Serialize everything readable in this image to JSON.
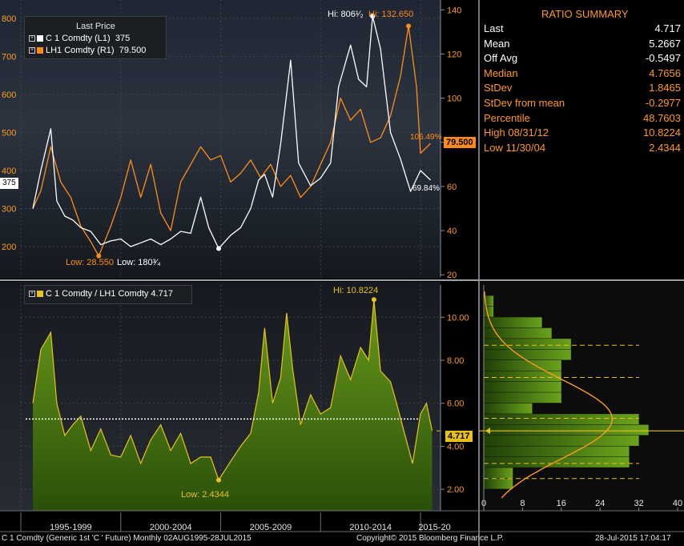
{
  "summary": {
    "title": "RATIO SUMMARY",
    "rows": [
      {
        "label": "Last",
        "value": "4.717",
        "color": "#ffffff"
      },
      {
        "label": "Mean",
        "value": "5.2667",
        "color": "#ffffff"
      },
      {
        "label": "Off Avg",
        "value": "-0.5497",
        "color": "#ffffff"
      },
      {
        "label": "Median",
        "value": "4.7656",
        "color": "#ff9a1f"
      },
      {
        "label": "StDev",
        "value": "1.8465",
        "color": "#ff9a1f"
      },
      {
        "label": "StDev from mean",
        "value": "-0.2977",
        "color": "#ff9a1f"
      },
      {
        "label": "Percentile",
        "value": "48.7603",
        "color": "#ff9a1f"
      },
      {
        "label": "High 08/31/12",
        "value": "10.8224",
        "color": "#ff9a1f"
      },
      {
        "label": "Low 11/30/04",
        "value": "2.4344",
        "color": "#ff9a1f"
      }
    ]
  },
  "top_legend": {
    "title": "Last Price",
    "rows": [
      {
        "marker": "⊞",
        "swatch": "#ffffff",
        "name": "C 1 Comdty  (L1)",
        "value": "375"
      },
      {
        "marker": "⊞",
        "swatch": "#ff8c1a",
        "name": "LH1 Comdty  (R1)",
        "value": "79.500"
      }
    ]
  },
  "bottom_legend": {
    "marker": "⊞",
    "swatch": "#e8c21a",
    "text": "C 1 Comdty / LH1 Comdty 4.717"
  },
  "annotations": {
    "top_hi_white": "Hi: 806¹⁄₂",
    "top_hi_orange": "Hi: 132.650",
    "top_low_orange": "Low: 28.550",
    "top_low_white": "Low: 180³⁄₄",
    "orange_right_tag": "79.500",
    "orange_pct": "106.49%",
    "white_pct": "69.84%",
    "white_left_tag": "375",
    "bottom_hi": "Hi: 10.8224",
    "bottom_low": "Low: 2.4344",
    "ratio_tag": "4.717"
  },
  "footer": {
    "left": "C 1 Comdty (Generic 1st 'C ' Future) Monthly 02AUG1995-28JUL2015",
    "center": "Copyright© 2015 Bloomberg Finance L.P.",
    "right": "28-Jul-2015 17:04:17"
  },
  "colors": {
    "corn": "#ffffff",
    "hogs": "#ff8c1a",
    "ratio_line": "#e8c21a",
    "ratio_fill": "#3e6b12",
    "axis_text": "#ff9a1f"
  },
  "chart_data": [
    {
      "type": "line",
      "title": "",
      "x_period_labels": [
        "1995-1999",
        "2000-2004",
        "2005-2009",
        "2010-2014",
        "2015-20"
      ],
      "left_axis": {
        "ticks": [
          200,
          300,
          400,
          500,
          600,
          700,
          800
        ],
        "ylim": [
          120,
          840
        ]
      },
      "right_axis": {
        "ticks": [
          20,
          40,
          60,
          80,
          100,
          120,
          140
        ],
        "ylim": [
          19,
          143
        ]
      },
      "series": [
        {
          "name": "C 1 Comdty  (L1)",
          "axis": "left",
          "x": [
            1995.6,
            1996.0,
            1996.5,
            1996.8,
            1997.2,
            1997.6,
            1998.0,
            1998.5,
            1999.0,
            1999.5,
            2000.0,
            2000.5,
            2001.0,
            2001.5,
            2002.0,
            2002.5,
            2003.0,
            2003.5,
            2004.0,
            2004.4,
            2004.9,
            2005.5,
            2006.0,
            2006.5,
            2006.9,
            2007.2,
            2007.6,
            2008.0,
            2008.5,
            2008.9,
            2009.5,
            2010.0,
            2010.5,
            2010.9,
            2011.5,
            2011.9,
            2012.3,
            2012.6,
            2013.0,
            2013.5,
            2014.0,
            2014.5,
            2015.0,
            2015.5
          ],
          "values": [
            300,
            400,
            510,
            320,
            280,
            270,
            250,
            240,
            205,
            215,
            220,
            200,
            210,
            220,
            205,
            220,
            240,
            235,
            330,
            250,
            195,
            230,
            250,
            300,
            375,
            390,
            330,
            470,
            690,
            420,
            360,
            380,
            420,
            620,
            730,
            640,
            620,
            806,
            720,
            500,
            430,
            345,
            400,
            375
          ]
        },
        {
          "name": "LH1 Comdty  (R1)",
          "axis": "right",
          "x": [
            1995.6,
            1996.0,
            1996.5,
            1997.0,
            1997.5,
            1998.0,
            1998.5,
            1998.9,
            1999.5,
            2000.0,
            2000.5,
            2001.0,
            2001.5,
            2002.0,
            2002.5,
            2003.0,
            2003.5,
            2004.0,
            2004.5,
            2005.0,
            2005.5,
            2006.0,
            2006.5,
            2007.0,
            2007.5,
            2008.0,
            2008.5,
            2009.0,
            2009.5,
            2010.0,
            2010.5,
            2011.0,
            2011.5,
            2012.0,
            2012.5,
            2013.0,
            2013.5,
            2014.0,
            2014.4,
            2014.8,
            2015.0,
            2015.5
          ],
          "values": [
            50,
            58,
            78,
            62,
            55,
            42,
            35,
            28.55,
            42,
            55,
            72,
            55,
            70,
            48,
            40,
            62,
            70,
            78,
            72,
            74,
            62,
            66,
            72,
            64,
            70,
            60,
            65,
            55,
            60,
            70,
            80,
            100,
            90,
            95,
            80,
            82,
            92,
            110,
            132.65,
            105,
            75,
            79.5
          ]
        }
      ]
    },
    {
      "type": "area",
      "title": "",
      "x_period_labels": [
        "1995-1999",
        "2000-2004",
        "2005-2009",
        "2010-2014",
        "2015-20"
      ],
      "y_axis": {
        "ticks": [
          2.0,
          4.0,
          6.0,
          8.0,
          10.0
        ],
        "ylim": [
          1.0,
          11.5
        ]
      },
      "mean_line": 5.2667,
      "series": [
        {
          "name": "C 1 Comdty / LH1 Comdty 4.717",
          "x": [
            1995.6,
            1996.0,
            1996.5,
            1996.8,
            1997.2,
            1997.6,
            1998.0,
            1998.5,
            1999.0,
            1999.5,
            2000.0,
            2000.5,
            2001.0,
            2001.5,
            2002.0,
            2002.5,
            2003.0,
            2003.5,
            2004.0,
            2004.5,
            2004.9,
            2005.5,
            2006.0,
            2006.5,
            2006.9,
            2007.2,
            2007.6,
            2008.0,
            2008.3,
            2008.6,
            2009.0,
            2009.5,
            2010.0,
            2010.5,
            2011.0,
            2011.5,
            2012.0,
            2012.4,
            2012.67,
            2013.0,
            2013.5,
            2013.8,
            2014.2,
            2014.6,
            2015.0,
            2015.3,
            2015.58
          ],
          "values": [
            6.0,
            8.5,
            9.3,
            6.0,
            4.5,
            5.0,
            5.4,
            3.8,
            4.8,
            3.6,
            3.5,
            4.5,
            3.2,
            4.3,
            5.0,
            3.8,
            4.6,
            3.2,
            3.5,
            3.5,
            2.43,
            3.3,
            4.0,
            4.6,
            6.5,
            9.5,
            6.0,
            7.2,
            10.2,
            7.6,
            5.0,
            6.4,
            5.5,
            5.8,
            8.2,
            7.1,
            8.6,
            8.0,
            10.82,
            7.5,
            7.0,
            6.0,
            4.6,
            3.2,
            5.5,
            6.0,
            4.717
          ]
        }
      ]
    },
    {
      "type": "bar",
      "title": "",
      "orientation": "horizontal",
      "x_ticks": [
        0,
        8,
        16,
        24,
        32,
        40
      ],
      "xlim": [
        0,
        40
      ],
      "bins_lower": [
        2.0,
        2.5,
        3.0,
        3.5,
        4.0,
        4.5,
        5.0,
        5.5,
        6.0,
        6.5,
        7.0,
        7.5,
        8.0,
        8.5,
        9.0,
        9.5,
        10.0,
        10.5
      ],
      "bins_upper": [
        2.5,
        3.0,
        3.5,
        4.0,
        4.5,
        5.0,
        5.5,
        6.0,
        6.5,
        7.0,
        7.5,
        8.0,
        8.5,
        9.0,
        9.5,
        10.0,
        10.5,
        11.0
      ],
      "values": [
        6,
        6,
        30,
        30,
        32,
        34,
        32,
        10,
        16,
        16,
        16,
        16,
        18,
        18,
        14,
        12,
        2,
        2
      ],
      "normal_curve": {
        "mean": 5.2667,
        "stdev": 1.8465,
        "peak": 26.5
      }
    }
  ]
}
